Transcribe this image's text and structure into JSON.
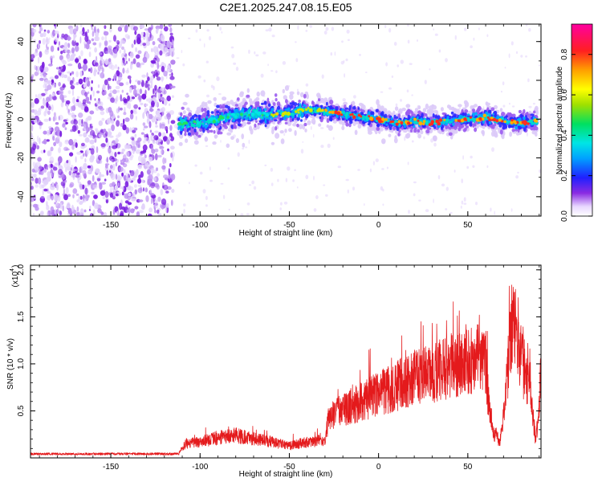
{
  "title": "C2E1.2025.247.08.15.E05",
  "colors": {
    "snr_line": "#e41a1c",
    "frame": "#000000",
    "background": "#ffffff"
  },
  "chart_data": [
    {
      "type": "heatmap",
      "name": "spectrogram",
      "xlabel": "Height of straight line (km)",
      "ylabel": "Frequency (Hz)",
      "xlim": [
        -195,
        91
      ],
      "ylim": [
        -50,
        49
      ],
      "xticks": [
        "-150",
        "-100",
        "-50",
        "0",
        "50"
      ],
      "xtick_values": [
        -150,
        -100,
        -50,
        0,
        50
      ],
      "yticks": [
        "-40",
        "-20",
        "0",
        "20",
        "40"
      ],
      "ytick_values": [
        -40,
        -20,
        0,
        20,
        40
      ],
      "noise_region_x": [
        -195,
        -115
      ],
      "ridge_x": [
        -112,
        -100,
        -90,
        -80,
        -70,
        -60,
        -50,
        -40,
        -30,
        -20,
        -10,
        0,
        10,
        20,
        30,
        40,
        50,
        60,
        70,
        80,
        89
      ],
      "ridge_freq": [
        -3,
        -2,
        0,
        2,
        3,
        2,
        3,
        5,
        4,
        3,
        1,
        0,
        -2,
        -1,
        -2,
        -1,
        0,
        1,
        -1,
        -2,
        -1
      ],
      "colorbar": {
        "label": "Normalized spectral amplitude",
        "range": [
          0.0,
          0.95
        ],
        "ticks": [
          "0.0",
          "0.2",
          "0.4",
          "0.6",
          "0.8"
        ],
        "tick_values": [
          0.0,
          0.2,
          0.4,
          0.6,
          0.8
        ]
      }
    },
    {
      "type": "line",
      "name": "snr",
      "xlabel": "Height of straight line (km)",
      "ylabel": "SNR (10 * v/v)",
      "scale_label": "(x10",
      "scale_exp": "4",
      "scale_close": ")",
      "xlim": [
        -195,
        91
      ],
      "ylim": [
        0,
        2.05
      ],
      "xticks": [
        "-150",
        "-100",
        "-50",
        "0",
        "50"
      ],
      "xtick_values": [
        -150,
        -100,
        -50,
        0,
        50
      ],
      "yticks": [
        "0.5",
        "1.0",
        "1.5",
        "2.0"
      ],
      "ytick_values": [
        0.5,
        1.0,
        1.5,
        2.0
      ],
      "series_envelope_x": [
        -195,
        -150,
        -112,
        -108,
        -100,
        -90,
        -80,
        -70,
        -60,
        -50,
        -40,
        -30,
        -28,
        -20,
        -10,
        0,
        10,
        20,
        30,
        40,
        50,
        55,
        60,
        62,
        65,
        68,
        70,
        75,
        78,
        80,
        85,
        88,
        90,
        91
      ],
      "series_envelope_y": [
        0.04,
        0.04,
        0.05,
        0.18,
        0.2,
        0.25,
        0.28,
        0.24,
        0.2,
        0.15,
        0.2,
        0.22,
        0.5,
        0.6,
        0.7,
        0.8,
        0.9,
        1.0,
        1.05,
        1.15,
        1.2,
        1.25,
        1.2,
        0.6,
        0.3,
        0.2,
        0.5,
        1.7,
        1.55,
        1.2,
        0.9,
        0.2,
        0.6,
        1.1
      ]
    }
  ]
}
